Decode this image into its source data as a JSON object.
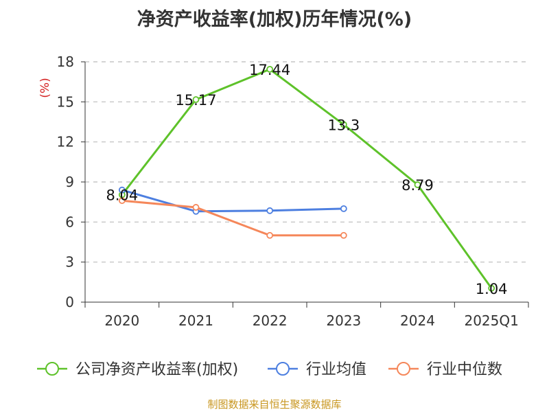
{
  "chart_data": {
    "type": "line",
    "title": "净资产收益率(加权)历年情况(%)",
    "ylabel": "(%)",
    "xlabel": "",
    "categories": [
      "2020",
      "2021",
      "2022",
      "2023",
      "2024",
      "2025Q1"
    ],
    "ylim": [
      0,
      18
    ],
    "yticks": [
      0,
      3,
      6,
      9,
      12,
      15,
      18
    ],
    "grid": true,
    "legend_position": "bottom",
    "series": [
      {
        "name": "公司净资产收益率(加权)",
        "color": "#5ec22a",
        "values": [
          8.04,
          15.17,
          17.44,
          13.3,
          8.79,
          1.04
        ],
        "labels": [
          "8.04",
          "15.17",
          "17.44",
          "13.3",
          "8.79",
          "1.04"
        ]
      },
      {
        "name": "行业均值",
        "color": "#4d7fe0",
        "values": [
          8.4,
          6.8,
          6.85,
          7.0,
          null,
          null
        ]
      },
      {
        "name": "行业中位数",
        "color": "#f5875a",
        "values": [
          7.6,
          7.1,
          5.0,
          5.0,
          null,
          null
        ]
      }
    ]
  },
  "source": "制图数据来自恒生聚源数据库"
}
